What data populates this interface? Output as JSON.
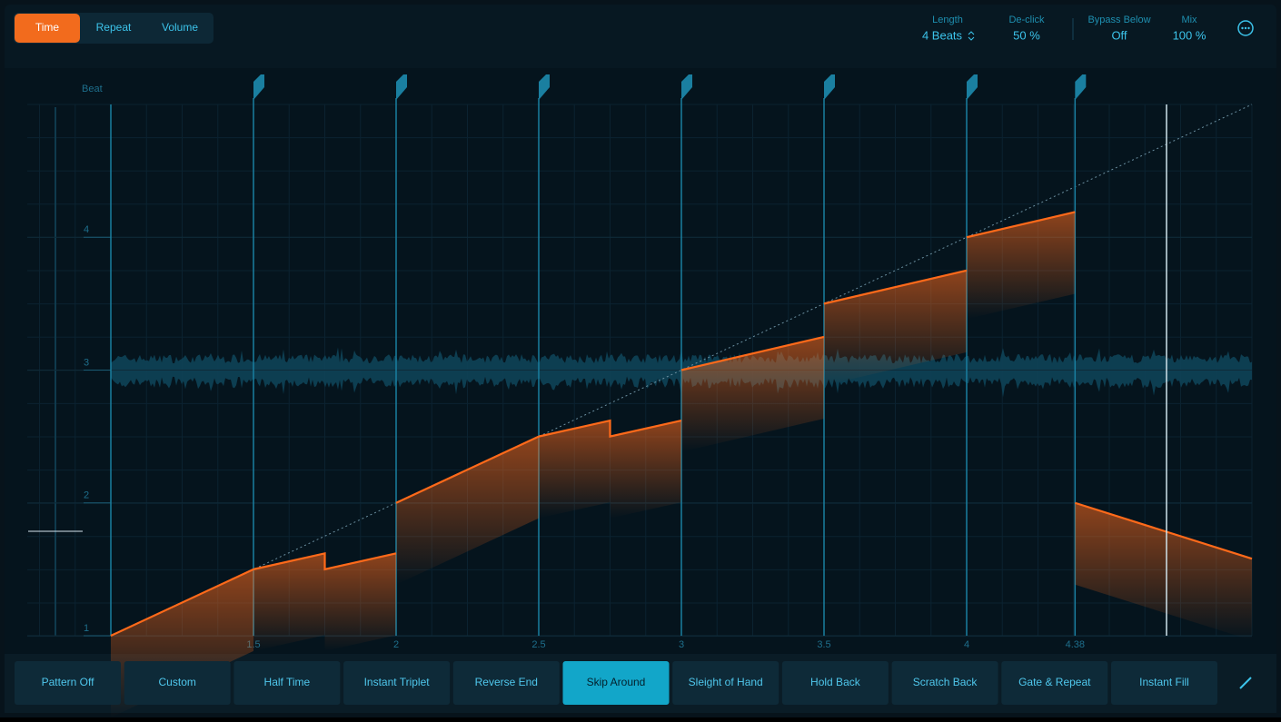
{
  "mode_tabs": {
    "items": [
      "Time",
      "Repeat",
      "Volume"
    ],
    "active": 0
  },
  "parameters": [
    {
      "label": "Length",
      "value": "4 Beats"
    },
    {
      "label": "De-click",
      "value": "50 %"
    },
    {
      "label": "Bypass Below",
      "value": "Off"
    },
    {
      "label": "Mix",
      "value": "100 %"
    }
  ],
  "graph": {
    "y_title": "Beat",
    "xlim": [
      1,
      5
    ],
    "ylim": [
      1,
      5
    ],
    "xticks": [
      1.5,
      2,
      2.5,
      3,
      3.5,
      4,
      4.38
    ],
    "yticks": [
      1,
      2,
      3,
      4
    ],
    "line_color": "#ff6a1a",
    "segments": [
      {
        "x": [
          1,
          1.5
        ],
        "y": [
          1,
          1.5
        ]
      },
      {
        "x": [
          1.5,
          1.75,
          1.75,
          2
        ],
        "y": [
          1.5,
          1.62,
          1.5,
          1.62
        ]
      },
      {
        "x": [
          2,
          2.5
        ],
        "y": [
          2,
          2.5
        ]
      },
      {
        "x": [
          2.5,
          2.75,
          2.75,
          3
        ],
        "y": [
          2.5,
          2.62,
          2.5,
          2.62
        ]
      },
      {
        "x": [
          3,
          3.5
        ],
        "y": [
          3,
          3.25
        ]
      },
      {
        "x": [
          3.5,
          4
        ],
        "y": [
          3.5,
          3.75
        ]
      },
      {
        "x": [
          4,
          4.38
        ],
        "y": [
          4,
          4.19
        ]
      },
      {
        "x": [
          4.38,
          5
        ],
        "y": [
          2,
          1.58
        ]
      }
    ]
  },
  "presets": {
    "items": [
      "Pattern Off",
      "Custom",
      "Half Time",
      "Instant Triplet",
      "Reverse End",
      "Skip Around",
      "Sleight of Hand",
      "Hold Back",
      "Scratch Back",
      "Gate & Repeat",
      "Instant Fill"
    ],
    "active": 5
  }
}
